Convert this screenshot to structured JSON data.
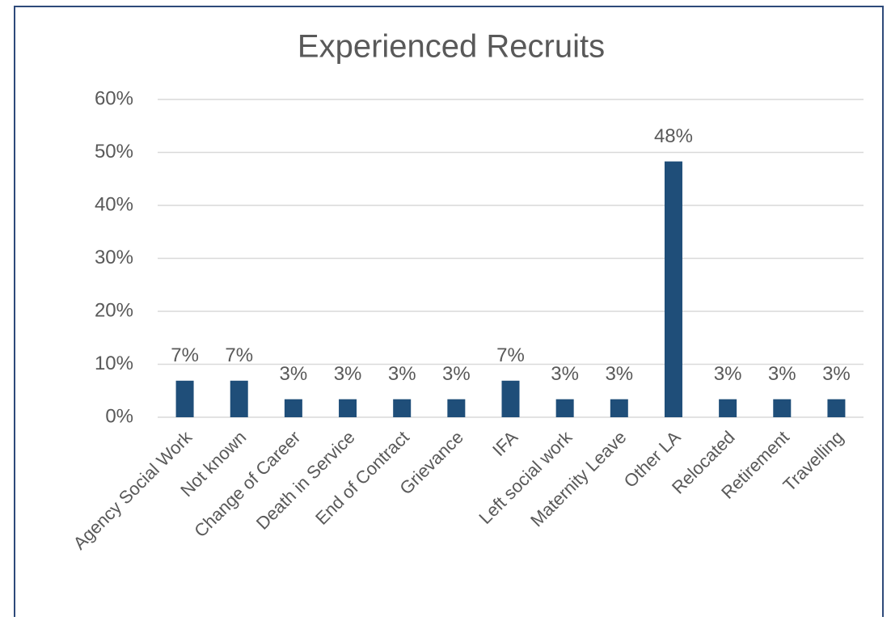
{
  "chart_data": {
    "type": "bar",
    "title": "Experienced Recruits",
    "categories": [
      "Agency Social Work",
      "Not known",
      "Change of Career",
      "Death in Service",
      "End of Contract",
      "Grievance",
      "IFA",
      "Left social work",
      "Maternity Leave",
      "Other LA",
      "Relocated",
      "Retirement",
      "Travelling"
    ],
    "values": [
      6.9,
      6.9,
      3.4,
      3.4,
      3.4,
      3.4,
      6.9,
      3.4,
      3.4,
      48.3,
      3.4,
      3.4,
      3.4
    ],
    "value_labels": [
      "7%",
      "7%",
      "3%",
      "3%",
      "3%",
      "3%",
      "7%",
      "3%",
      "3%",
      "48%",
      "3%",
      "3%",
      "3%"
    ],
    "color": "#1f4e79",
    "ylim": [
      0,
      60
    ],
    "yticks": [
      {
        "value": 0,
        "label": "0%"
      },
      {
        "value": 10,
        "label": "10%"
      },
      {
        "value": 20,
        "label": "20%"
      },
      {
        "value": 30,
        "label": "30%"
      },
      {
        "value": 40,
        "label": "40%"
      },
      {
        "value": 50,
        "label": "50%"
      },
      {
        "value": 60,
        "label": "60%"
      }
    ],
    "grid": true
  }
}
